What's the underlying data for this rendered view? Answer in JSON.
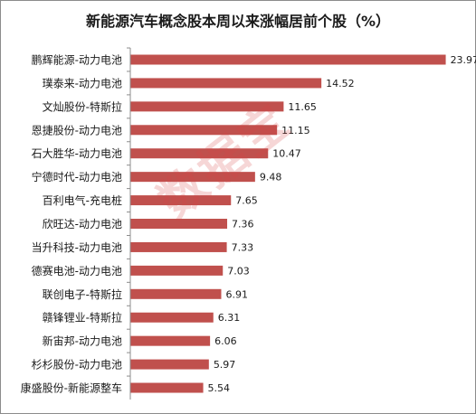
{
  "watermark": "数据宝",
  "chart_data": {
    "type": "bar",
    "orientation": "horizontal",
    "title": "新能源汽车概念股本周以来涨幅居前个股（%）",
    "bar_color": "#c0504d",
    "axis_color": "#8c8c8c",
    "xlim": [
      0,
      24
    ],
    "grid": false,
    "legend": "none",
    "categories": [
      "鹏辉能源-动力电池",
      "璞泰来-动力电池",
      "文灿股份-特斯拉",
      "恩捷股份-动力电池",
      "石大胜华-动力电池",
      "宁德时代-动力电池",
      "百利电气-充电桩",
      "欣旺达-动力电池",
      "当升科技-动力电池",
      "德赛电池-动力电池",
      "联创电子-特斯拉",
      "赣锋锂业-特斯拉",
      "新宙邦-动力电池",
      "杉杉股份-动力电池",
      "康盛股份-新能源整车"
    ],
    "values": [
      23.97,
      14.52,
      11.65,
      11.15,
      10.47,
      9.48,
      7.65,
      7.36,
      7.33,
      7.03,
      6.91,
      6.31,
      6.06,
      5.97,
      5.54
    ],
    "value_labels": [
      "23.97",
      "14.52",
      "11.65",
      "11.15",
      "10.47",
      "9.48",
      "7.65",
      "7.36",
      "7.33",
      "7.03",
      "6.91",
      "6.31",
      "6.06",
      "5.97",
      "5.54"
    ]
  }
}
